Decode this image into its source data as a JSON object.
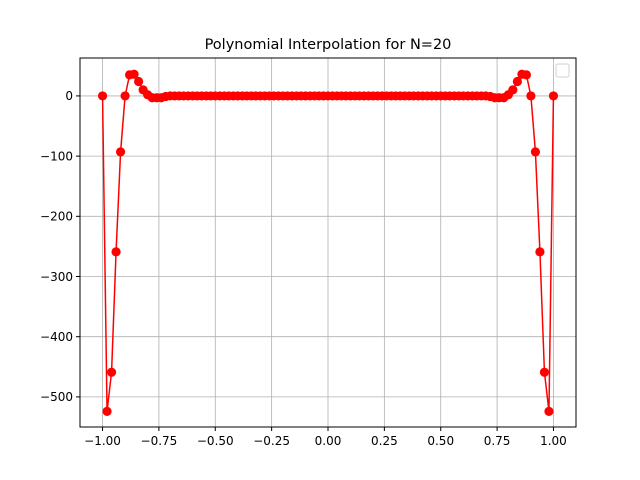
{
  "chart_data": {
    "type": "line",
    "title": "Polynomial Interpolation for N=20",
    "xlabel": "",
    "ylabel": "",
    "xlim": [
      -1.1,
      1.1
    ],
    "ylim": [
      -550,
      63
    ],
    "grid": true,
    "legend": {
      "placement": "top-right",
      "entries": []
    },
    "x_ticks": [
      -1.0,
      -0.75,
      -0.5,
      -0.25,
      0.0,
      0.25,
      0.5,
      0.75,
      1.0
    ],
    "x_tick_labels": [
      "−1.00",
      "−0.75",
      "−0.50",
      "−0.25",
      "0.00",
      "0.25",
      "0.50",
      "0.75",
      "1.00"
    ],
    "y_ticks": [
      0,
      -100,
      -200,
      -300,
      -400,
      -500
    ],
    "y_tick_labels": [
      "0",
      "−100",
      "−200",
      "−300",
      "−400",
      "−500"
    ],
    "series": [
      {
        "color": "#ff0000",
        "marker": "circle",
        "x": [
          -1.0,
          -0.98,
          -0.96,
          -0.94,
          -0.92,
          -0.9,
          -0.88,
          -0.86,
          -0.84,
          -0.82,
          -0.8,
          -0.78,
          -0.76,
          -0.74,
          -0.72,
          -0.7,
          -0.68,
          -0.66,
          -0.64,
          -0.62,
          -0.6,
          -0.58,
          -0.56,
          -0.54,
          -0.52,
          -0.5,
          -0.48,
          -0.46,
          -0.44,
          -0.42,
          -0.4,
          -0.38,
          -0.36,
          -0.34,
          -0.32,
          -0.3,
          -0.28,
          -0.26,
          -0.24,
          -0.22,
          -0.2,
          -0.18,
          -0.16,
          -0.14,
          -0.12,
          -0.1,
          -0.08,
          -0.06,
          -0.04,
          -0.02,
          0.0,
          0.02,
          0.04,
          0.06,
          0.08,
          0.1,
          0.12,
          0.14,
          0.16,
          0.18,
          0.2,
          0.22,
          0.24,
          0.26,
          0.28,
          0.3,
          0.32,
          0.34,
          0.36,
          0.38,
          0.4,
          0.42,
          0.44,
          0.46,
          0.48,
          0.5,
          0.52,
          0.54,
          0.56,
          0.58,
          0.6,
          0.62,
          0.64,
          0.66,
          0.68,
          0.7,
          0.72,
          0.74,
          0.76,
          0.78,
          0.8,
          0.82,
          0.84,
          0.86,
          0.88,
          0.9,
          0.92,
          0.94,
          0.96,
          0.98,
          1.0
        ],
        "y": [
          0,
          -524,
          -459,
          -259,
          -93,
          0,
          35,
          36,
          24,
          10,
          2,
          -3,
          -3,
          -3,
          -1,
          0,
          0,
          0,
          0,
          0,
          0,
          0,
          0,
          0,
          0,
          0,
          0,
          0,
          0,
          0,
          0,
          0,
          0,
          0,
          0,
          0,
          0,
          0,
          0,
          0,
          0,
          0,
          0,
          0,
          0,
          0,
          0,
          0,
          0,
          0,
          0,
          0,
          0,
          0,
          0,
          0,
          0,
          0,
          0,
          0,
          0,
          0,
          0,
          0,
          0,
          0,
          0,
          0,
          0,
          0,
          0,
          0,
          0,
          0,
          0,
          0,
          0,
          0,
          0,
          0,
          0,
          0,
          0,
          0,
          0,
          0,
          -1,
          -3,
          -3,
          -3,
          2,
          10,
          24,
          36,
          35,
          0,
          -93,
          -259,
          -459,
          -524,
          0
        ]
      }
    ]
  }
}
